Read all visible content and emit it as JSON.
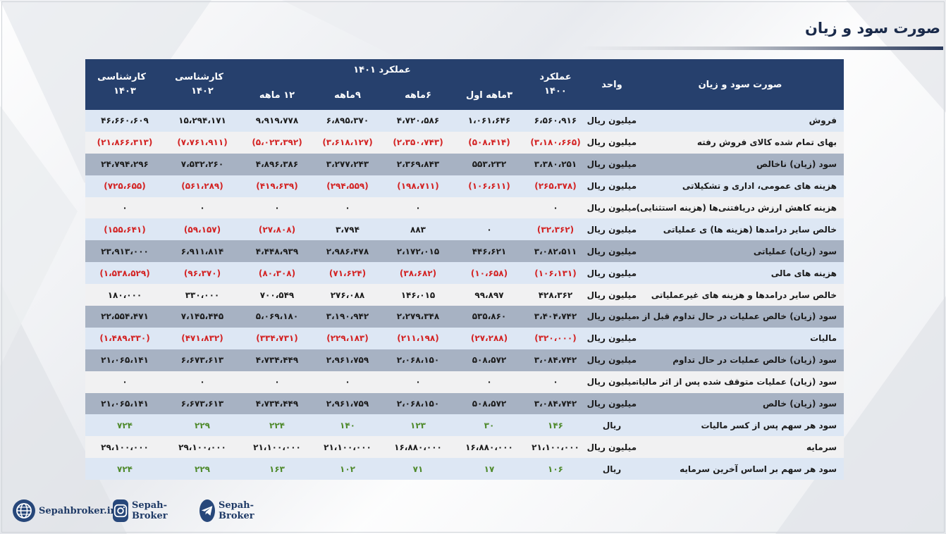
{
  "page": {
    "title": "صورت سود و زیان"
  },
  "table": {
    "headers": {
      "item": "صورت سود و زیان",
      "unit": "واحد",
      "perf1400": "عملکرد ۱۴۰۰",
      "perf1401_group": "عملکرد ۱۴۰۱",
      "q3": "۳ماهه اول",
      "q6": "۶ماهه",
      "q9": "۹ماهه",
      "q12": "۱۲ ماهه",
      "exp1402": "کارشناسی ۱۴۰۲",
      "exp1403": "کارشناسی ۱۴۰۳"
    },
    "rows": [
      {
        "style": "blue",
        "label": "فروش",
        "unit": "میلیون ریال",
        "values": [
          "۶،۵۶۰،۹۱۶",
          "۱،۰۶۱،۶۴۶",
          "۴،۷۲۰،۵۸۶",
          "۶،۸۹۵،۳۷۰",
          "۹،۹۱۹،۷۷۸",
          "۱۵،۲۹۴،۱۷۱",
          "۴۶،۶۶۰،۶۰۹"
        ],
        "colors": [
          "n",
          "n",
          "n",
          "n",
          "n",
          "n",
          "n"
        ]
      },
      {
        "style": "light",
        "label": "بهای تمام شده کالای فروش رفته",
        "unit": "میلیون ریال",
        "values": [
          "(۳،۱۸۰،۶۶۵)",
          "(۵۰۸،۴۱۴)",
          "(۲،۳۵۰،۷۴۳)",
          "(۳،۶۱۸،۱۲۷)",
          "(۵،۰۲۳،۳۹۲)",
          "(۷،۷۶۱،۹۱۱)",
          "(۲۱،۸۶۶،۳۱۳)"
        ],
        "colors": [
          "r",
          "r",
          "r",
          "r",
          "r",
          "r",
          "r"
        ]
      },
      {
        "style": "dark",
        "label": "سود (زیان) ناخالص",
        "unit": "میلیون ریال",
        "values": [
          "۳،۳۸۰،۲۵۱",
          "۵۵۳،۲۳۲",
          "۲،۳۶۹،۸۴۳",
          "۳،۲۷۷،۲۴۳",
          "۴،۸۹۶،۳۸۶",
          "۷،۵۳۲،۲۶۰",
          "۲۴،۷۹۴،۲۹۶"
        ],
        "colors": [
          "n",
          "n",
          "n",
          "n",
          "n",
          "n",
          "n"
        ]
      },
      {
        "style": "blue",
        "label": "هزینه های عمومی، اداری و تشکیلاتی",
        "unit": "میلیون ریال",
        "values": [
          "(۲۶۵،۳۷۸)",
          "(۱۰۶،۶۱۱)",
          "(۱۹۸،۷۱۱)",
          "(۲۹۴،۵۵۹)",
          "(۴۱۹،۶۳۹)",
          "(۵۶۱،۲۸۹)",
          "(۷۲۵،۶۵۵)"
        ],
        "colors": [
          "r",
          "r",
          "r",
          "r",
          "r",
          "r",
          "r"
        ]
      },
      {
        "style": "light",
        "label": "هزینه کاهش ارزش دریافتنی‌ها (هزینه استثنایی)",
        "unit": "میلیون ریال",
        "values": [
          "۰",
          "",
          "۰",
          "۰",
          "۰",
          "۰",
          "۰"
        ],
        "colors": [
          "n",
          "n",
          "n",
          "n",
          "n",
          "n",
          "n"
        ]
      },
      {
        "style": "blue",
        "label": "خالص سایر درامدها (هزینه ها) ی عملیاتی",
        "unit": "میلیون ریال",
        "values": [
          "(۳۲،۳۶۲)",
          "۰",
          "۸۸۳",
          "۳،۷۹۴",
          "(۲۷،۸۰۸)",
          "(۵۹،۱۵۷)",
          "(۱۵۵،۶۴۱)"
        ],
        "colors": [
          "r",
          "n",
          "n",
          "n",
          "r",
          "r",
          "r"
        ]
      },
      {
        "style": "dark",
        "label": "سود (زیان) عملیاتی",
        "unit": "میلیون ریال",
        "values": [
          "۳،۰۸۲،۵۱۱",
          "۴۴۶،۶۲۱",
          "۲،۱۷۲،۰۱۵",
          "۲،۹۸۶،۴۷۸",
          "۴،۴۴۸،۹۳۹",
          "۶،۹۱۱،۸۱۴",
          "۲۳،۹۱۳،۰۰۰"
        ],
        "colors": [
          "n",
          "n",
          "n",
          "n",
          "n",
          "n",
          "n"
        ]
      },
      {
        "style": "blue",
        "label": "هزینه های مالی",
        "unit": "میلیون ریال",
        "values": [
          "(۱۰۶،۱۳۱)",
          "(۱۰،۶۵۸)",
          "(۳۸،۶۸۲)",
          "(۷۱،۶۲۴)",
          "(۸۰،۳۰۸)",
          "(۹۶،۳۷۰)",
          "(۱،۵۳۸،۵۲۹)"
        ],
        "colors": [
          "r",
          "r",
          "r",
          "r",
          "r",
          "r",
          "r"
        ]
      },
      {
        "style": "light",
        "label": "خالص سایر درامدها و هزینه های غیرعملیاتی",
        "unit": "میلیون ریال",
        "values": [
          "۴۲۸،۳۶۲",
          "۹۹،۸۹۷",
          "۱۴۶،۰۱۵",
          "۲۷۶،۰۸۸",
          "۷۰۰،۵۴۹",
          "۳۳۰،۰۰۰",
          "۱۸۰،۰۰۰"
        ],
        "colors": [
          "n",
          "n",
          "n",
          "n",
          "n",
          "n",
          "n"
        ]
      },
      {
        "style": "dark",
        "label": "سود (زیان) خالص عملیات در حال تداوم قبل از مالیات",
        "unit": "میلیون ریال",
        "values": [
          "۳،۴۰۴،۷۴۲",
          "۵۳۵،۸۶۰",
          "۲،۲۷۹،۳۴۸",
          "۳،۱۹۰،۹۴۲",
          "۵،۰۶۹،۱۸۰",
          "۷،۱۴۵،۴۴۵",
          "۲۲،۵۵۴،۴۷۱"
        ],
        "colors": [
          "n",
          "n",
          "n",
          "n",
          "n",
          "n",
          "n"
        ]
      },
      {
        "style": "blue",
        "label": "مالیات",
        "unit": "میلیون ریال",
        "values": [
          "(۳۲۰،۰۰۰)",
          "(۲۷،۲۸۸)",
          "(۲۱۱،۱۹۸)",
          "(۲۲۹،۱۸۳)",
          "(۳۳۴،۷۳۱)",
          "(۴۷۱،۸۳۲)",
          "(۱،۴۸۹،۳۳۰)"
        ],
        "colors": [
          "r",
          "r",
          "r",
          "r",
          "r",
          "r",
          "r"
        ]
      },
      {
        "style": "dark",
        "label": "سود (زیان) خالص عملیات در حال تداوم",
        "unit": "میلیون ریال",
        "values": [
          "۳،۰۸۴،۷۴۲",
          "۵۰۸،۵۷۲",
          "۲،۰۶۸،۱۵۰",
          "۲،۹۶۱،۷۵۹",
          "۴،۷۳۴،۴۴۹",
          "۶،۶۷۳،۶۱۳",
          "۲۱،۰۶۵،۱۴۱"
        ],
        "colors": [
          "n",
          "n",
          "n",
          "n",
          "n",
          "n",
          "n"
        ]
      },
      {
        "style": "light",
        "label": "سود (زیان) عملیات متوقف شده پس از اثر مالیاتی",
        "unit": "میلیون ریال",
        "values": [
          "۰",
          "۰",
          "۰",
          "۰",
          "۰",
          "۰",
          "۰"
        ],
        "colors": [
          "n",
          "n",
          "n",
          "n",
          "n",
          "n",
          "n"
        ]
      },
      {
        "style": "dark",
        "label": "سود (زیان) خالص",
        "unit": "میلیون ریال",
        "values": [
          "۳،۰۸۴،۷۴۲",
          "۵۰۸،۵۷۲",
          "۲،۰۶۸،۱۵۰",
          "۲،۹۶۱،۷۵۹",
          "۴،۷۳۴،۴۴۹",
          "۶،۶۷۳،۶۱۳",
          "۲۱،۰۶۵،۱۴۱"
        ],
        "colors": [
          "n",
          "n",
          "n",
          "n",
          "n",
          "n",
          "n"
        ]
      },
      {
        "style": "blue",
        "label": "سود هر سهم پس از کسر مالیات",
        "unit": "ریال",
        "values": [
          "۱۴۶",
          "۳۰",
          "۱۲۳",
          "۱۴۰",
          "۲۲۴",
          "۲۲۹",
          "۷۲۴"
        ],
        "colors": [
          "g",
          "g",
          "g",
          "g",
          "g",
          "g",
          "g"
        ]
      },
      {
        "style": "light",
        "label": "سرمایه",
        "unit": "میلیون ریال",
        "values": [
          "۲۱،۱۰۰،۰۰۰",
          "۱۶،۸۸۰،۰۰۰",
          "۱۶،۸۸۰،۰۰۰",
          "۲۱،۱۰۰،۰۰۰",
          "۲۱،۱۰۰،۰۰۰",
          "۲۹،۱۰۰،۰۰۰",
          "۲۹،۱۰۰،۰۰۰"
        ],
        "colors": [
          "n",
          "n",
          "n",
          "n",
          "n",
          "n",
          "n"
        ]
      },
      {
        "style": "blue",
        "label": "سود هر سهم بر اساس آخرین سرمایه",
        "unit": "ریال",
        "values": [
          "۱۰۶",
          "۱۷",
          "۷۱",
          "۱۰۲",
          "۱۶۳",
          "۲۲۹",
          "۷۲۴"
        ],
        "colors": [
          "g",
          "g",
          "g",
          "g",
          "g",
          "g",
          "g"
        ]
      }
    ]
  },
  "footer": {
    "website": "Sepahbroker.ir",
    "instagram": "Sepah-Broker",
    "telegram": "Sepah-Broker",
    "icons": [
      "globe-icon",
      "instagram-icon",
      "telegram-icon"
    ]
  },
  "colors": {
    "header_bg": "#26406d",
    "negative": "#d32222",
    "positive_eps": "#4f8a2c"
  }
}
